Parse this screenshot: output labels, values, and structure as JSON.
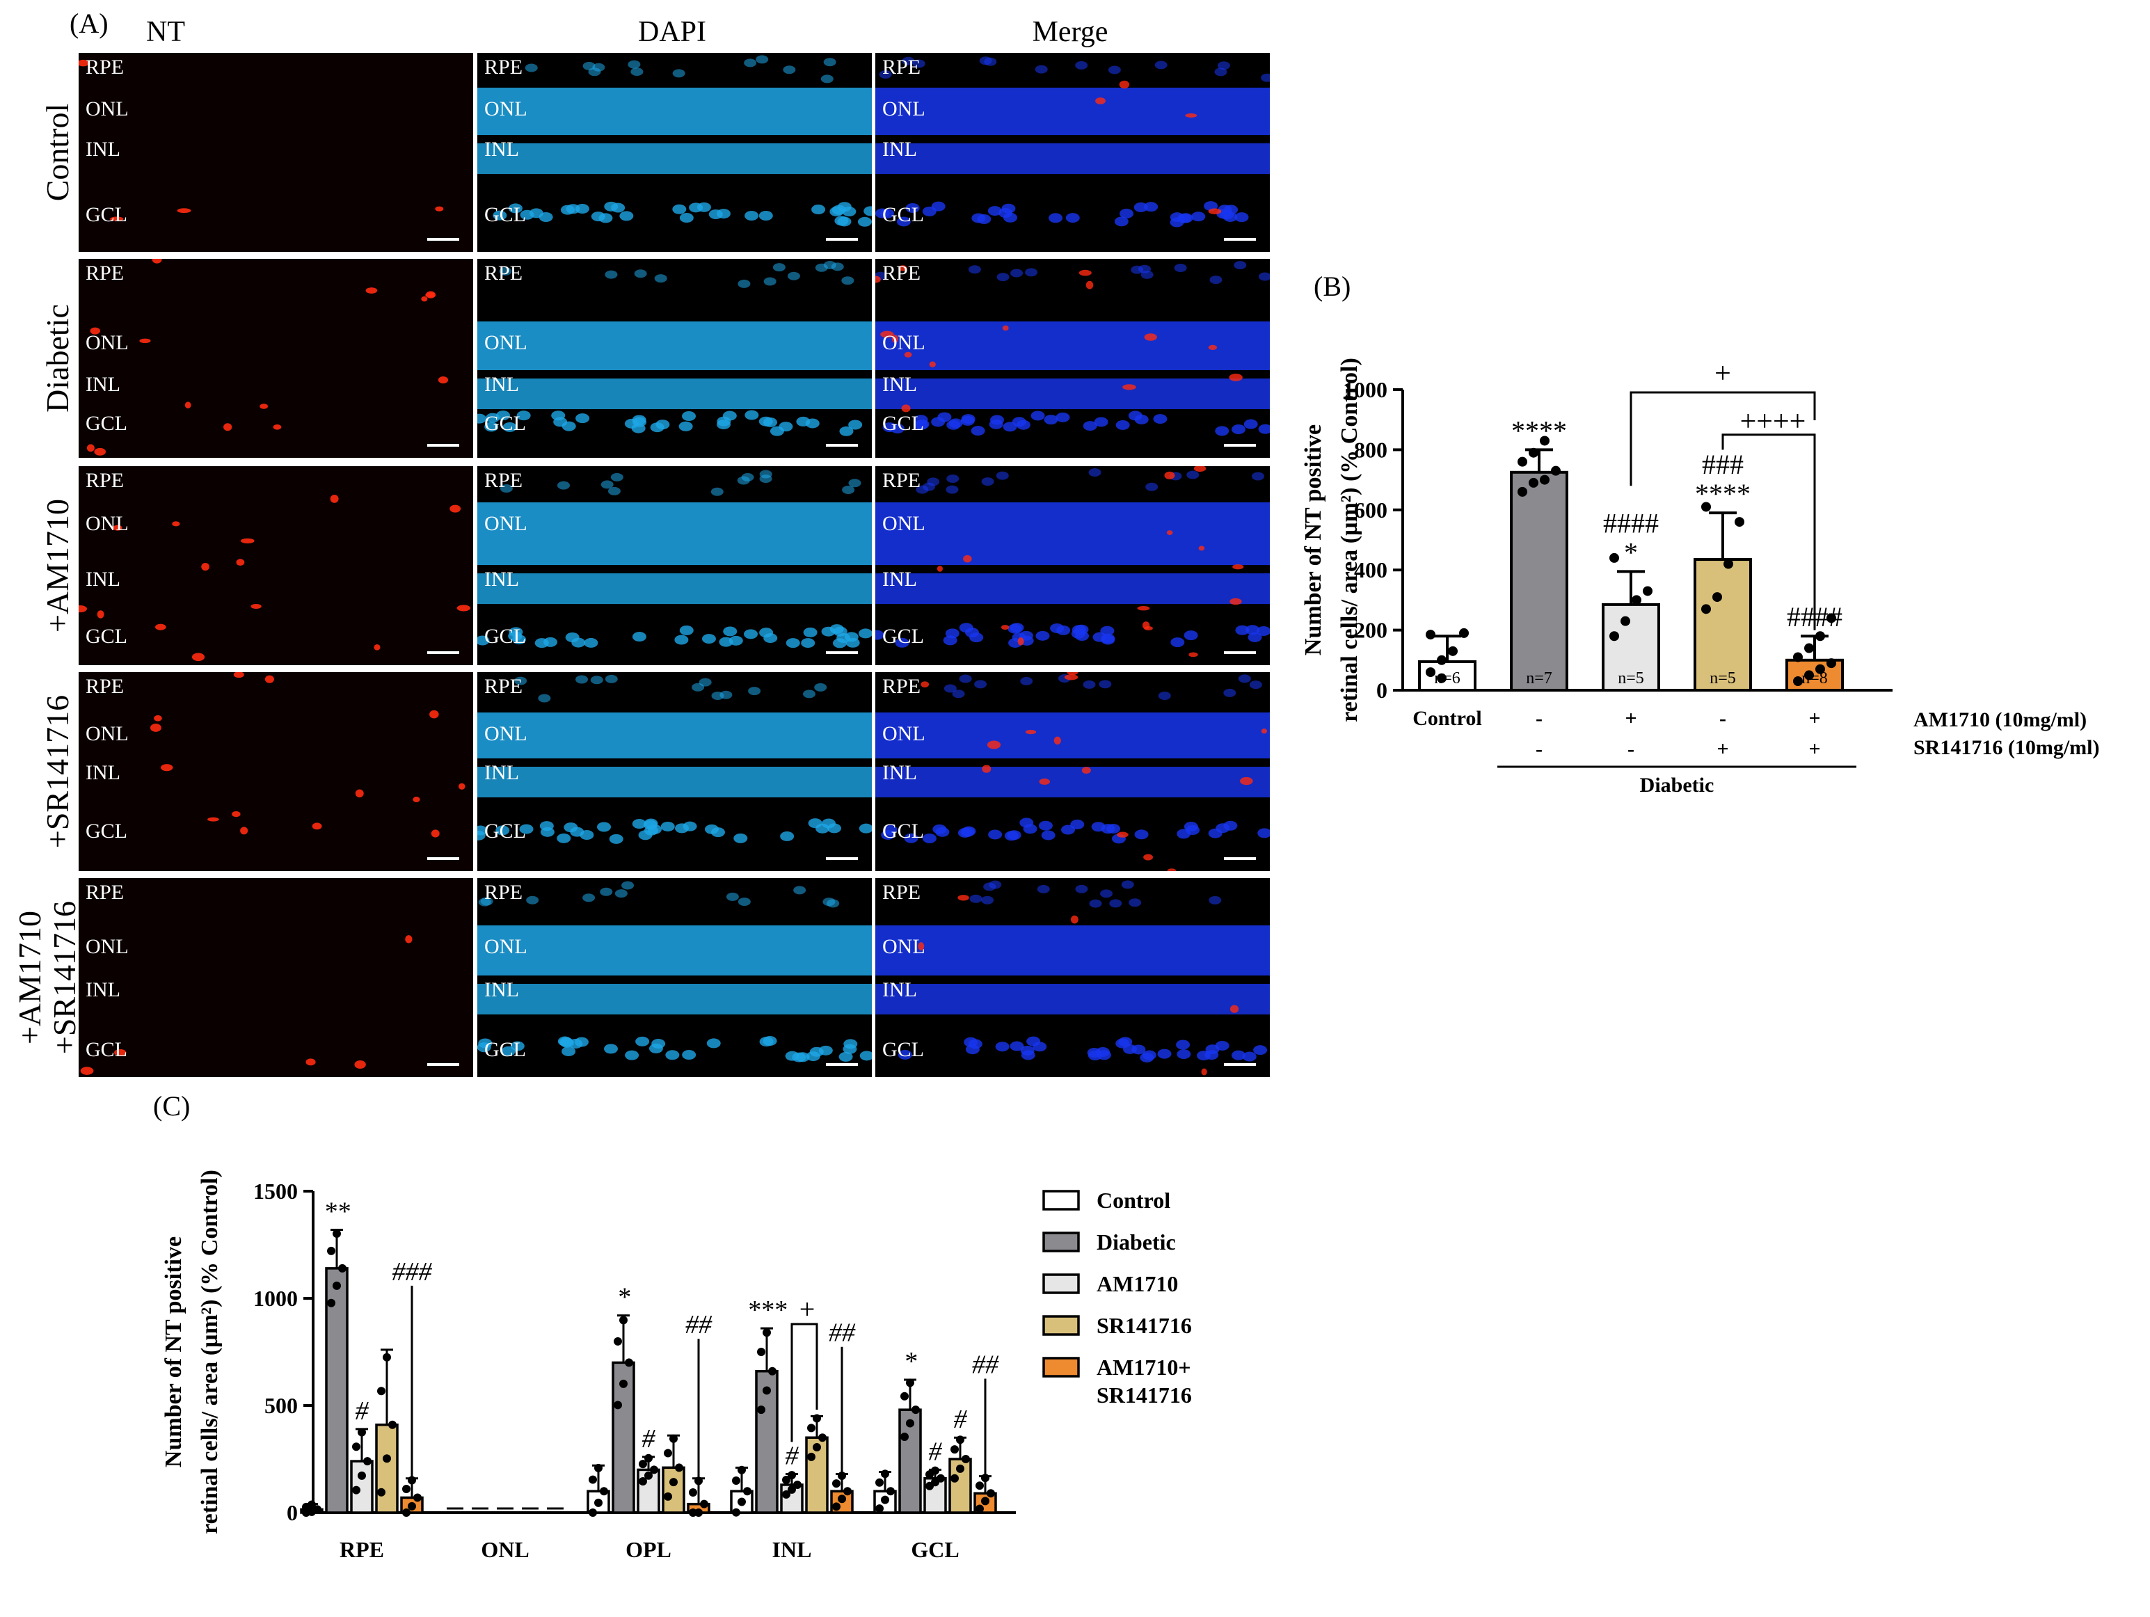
{
  "panelA": {
    "label": "(A)",
    "columns": [
      "NT",
      "DAPI",
      "Merge"
    ],
    "rows": [
      "Control",
      "Diabetic",
      "+AM1710",
      "+SR141716",
      "+AM1710\n+SR141716"
    ],
    "layers": [
      [
        "RPE",
        "ONL",
        "INL",
        "GCL"
      ],
      [
        "RPE",
        "ONL",
        "INL",
        "GCL"
      ],
      [
        "RPE",
        "ONL",
        "INL",
        "GCL"
      ],
      [
        "RPE",
        "ONL",
        "INL",
        "GCL"
      ],
      [
        "RPE",
        "ONL",
        "INL",
        "GCL"
      ]
    ]
  },
  "panelB": {
    "label": "(B)"
  },
  "panelC": {
    "label": "(C)"
  },
  "colors": {
    "control": "#ffffff",
    "diabetic": "#8a8a8f",
    "am1710": "#e6e6e6",
    "sr141716": "#d9c07a",
    "combo": "#ee8a2f",
    "nt_signal": "#ff2a10",
    "dapi": "#1ea6e6",
    "merge": "#1836f0"
  },
  "chart_data": [
    {
      "type": "bar",
      "panel": "B",
      "ylabel_line1": "Number of NT positive",
      "ylabel_line2": "retinal cells/ area (µm²) (% Control)",
      "ylim": [
        0,
        1000
      ],
      "yticks": [
        "0",
        "200",
        "400",
        "600",
        "800",
        "1000"
      ],
      "bars": [
        {
          "value": 95,
          "err": 85,
          "n": "n=6",
          "points": [
            60,
            100,
            130,
            190,
            185,
            40
          ],
          "colorKey": "control",
          "sig": []
        },
        {
          "value": 725,
          "err": 75,
          "n": "n=7",
          "points": [
            660,
            690,
            700,
            730,
            760,
            790,
            830
          ],
          "colorKey": "diabetic",
          "sig": [
            "****"
          ]
        },
        {
          "value": 285,
          "err": 110,
          "n": "n=5",
          "points": [
            180,
            230,
            300,
            330,
            440
          ],
          "colorKey": "am1710",
          "sig": [
            "####",
            "*"
          ]
        },
        {
          "value": 435,
          "err": 155,
          "n": "n=5",
          "points": [
            270,
            310,
            420,
            560,
            610
          ],
          "colorKey": "sr141716",
          "sig": [
            "###",
            "****"
          ]
        },
        {
          "value": 100,
          "err": 80,
          "n": "n=8",
          "points": [
            30,
            50,
            70,
            90,
            110,
            140,
            180,
            240
          ],
          "colorKey": "combo",
          "sig": [
            "####"
          ]
        }
      ],
      "brackets": [
        {
          "from": 2,
          "to": 4,
          "label": "+"
        },
        {
          "from": 3,
          "to": 4,
          "label": "++++"
        }
      ],
      "xlabels": [
        "Control",
        "-",
        "+",
        "-",
        "+"
      ],
      "xlabels2": [
        "",
        "-",
        "-",
        "+",
        "+"
      ],
      "row1_name": "AM1710 (10mg/ml)",
      "row2_name": "SR141716 (10mg/ml)",
      "group_label": "Diabetic"
    },
    {
      "type": "bar",
      "panel": "C",
      "ylabel_line1": "Number of NT positive",
      "ylabel_line2": "retinal cells/ area (µm²) (% Control)",
      "ylim": [
        0,
        1500
      ],
      "yticks": [
        "0",
        "500",
        "1000",
        "1500"
      ],
      "categories": [
        "RPE",
        "ONL",
        "OPL",
        "INL",
        "GCL"
      ],
      "legend": [
        "Control",
        "Diabetic",
        "AM1710",
        "SR141716",
        "AM1710+\nSR141716"
      ],
      "series": [
        {
          "name": "Control",
          "colorKey": "control",
          "values": [
            15,
            0,
            100,
            100,
            100
          ],
          "err": [
            25,
            0,
            120,
            110,
            90
          ],
          "sig": [
            "",
            "",
            "",
            "",
            ""
          ]
        },
        {
          "name": "Diabetic",
          "colorKey": "diabetic",
          "values": [
            1140,
            0,
            700,
            660,
            480
          ],
          "err": [
            180,
            0,
            220,
            200,
            140
          ],
          "sig": [
            "**",
            "",
            "*",
            "***",
            "*"
          ]
        },
        {
          "name": "AM1710",
          "colorKey": "am1710",
          "values": [
            240,
            0,
            200,
            130,
            160
          ],
          "err": [
            150,
            0,
            60,
            50,
            40
          ],
          "sig": [
            "#",
            "",
            "#",
            "#",
            "#"
          ]
        },
        {
          "name": "SR141716",
          "colorKey": "sr141716",
          "values": [
            410,
            0,
            210,
            350,
            250
          ],
          "err": [
            350,
            0,
            150,
            100,
            100
          ],
          "sig": [
            "",
            "",
            "",
            "",
            "#"
          ]
        },
        {
          "name": "AM1710+\nSR141716",
          "colorKey": "combo",
          "values": [
            70,
            0,
            40,
            100,
            90
          ],
          "err": [
            90,
            0,
            120,
            80,
            80
          ],
          "sig": [
            "###",
            "",
            "##",
            "##",
            "##"
          ]
        }
      ],
      "inl_bracket_label": "+"
    }
  ]
}
